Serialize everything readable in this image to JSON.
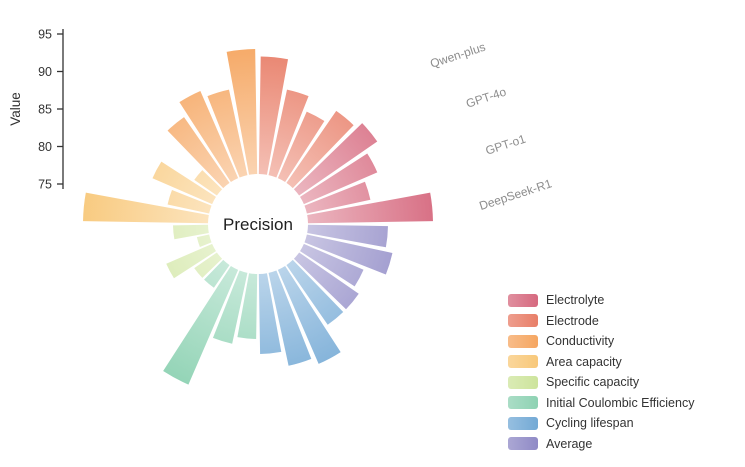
{
  "chart_data": {
    "type": "polar-bar",
    "variant": "nightingale-rose-grouped",
    "center_label": "Precision",
    "radial_axis": {
      "label": "Value",
      "ticks": [
        75,
        80,
        85,
        90,
        95
      ],
      "min": 75,
      "max": 95
    },
    "models": [
      "Qwen-plus",
      "GPT-4o",
      "GPT-o1",
      "DeepSeek-R1"
    ],
    "categories": [
      {
        "name": "Electrolyte",
        "color": "#d6697f",
        "values": [
          89,
          87,
          85,
          93
        ]
      },
      {
        "name": "Electrode",
        "color": "#e87e68",
        "values": [
          92,
          88,
          86,
          88
        ]
      },
      {
        "name": "Conductivity",
        "color": "#f5a661",
        "values": [
          87,
          89,
          88,
          93
        ]
      },
      {
        "name": "Area capacity",
        "color": "#f8c87a",
        "values": [
          93,
          82,
          85,
          80
        ]
      },
      {
        "name": "Specific capacity",
        "color": "#cde49c",
        "values": [
          80,
          83,
          78,
          81
        ]
      },
      {
        "name": "Initial Coulombic Efficiency",
        "color": "#8ed2b3",
        "values": [
          85,
          86,
          93,
          80
        ]
      },
      {
        "name": "Cycling lifespan",
        "color": "#73a9d5",
        "values": [
          86,
          90,
          89,
          87
        ]
      },
      {
        "name": "Average",
        "color": "#8f8ac6",
        "values": [
          87,
          88,
          85,
          86
        ]
      }
    ],
    "legend_position": "bottom-right",
    "grid": false
  }
}
